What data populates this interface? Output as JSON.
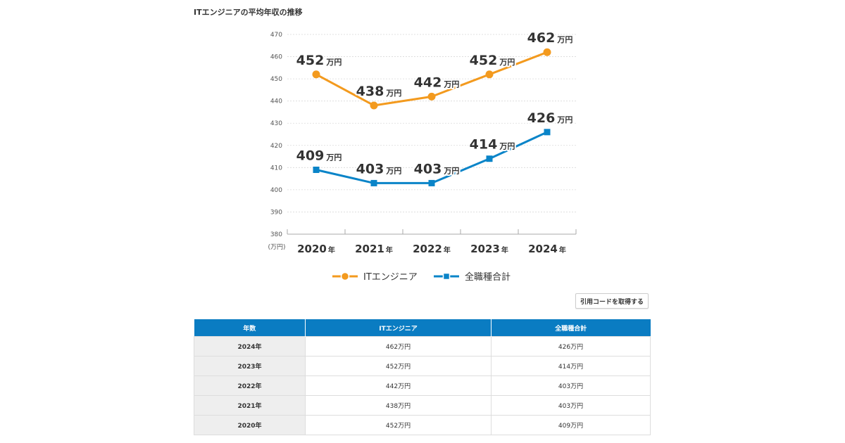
{
  "title": "ITエンジニアの平均年収の推移",
  "colors": {
    "it": "#f39a1e",
    "all": "#0a84c8",
    "header": "#0a7cc2"
  },
  "chart_data": {
    "type": "line",
    "x": [
      "2020年",
      "2021年",
      "2022年",
      "2023年",
      "2024年"
    ],
    "series": [
      {
        "name": "ITエンジニア",
        "marker": "circle",
        "values": [
          452,
          438,
          442,
          452,
          462
        ]
      },
      {
        "name": "全職種合計",
        "marker": "square",
        "values": [
          409,
          403,
          403,
          414,
          426
        ]
      }
    ],
    "unit": "万円",
    "ylabel": "(万円)",
    "ylim": [
      380,
      470
    ],
    "yticks": [
      380,
      390,
      400,
      410,
      420,
      430,
      440,
      450,
      460,
      470
    ],
    "grid": true,
    "legend": "bottom-center"
  },
  "cite_button": "引用コードを取得する",
  "table": {
    "headers": [
      "年数",
      "ITエンジニア",
      "全職種合計"
    ],
    "rows": [
      [
        "2024年",
        "462万円",
        "426万円"
      ],
      [
        "2023年",
        "452万円",
        "414万円"
      ],
      [
        "2022年",
        "442万円",
        "403万円"
      ],
      [
        "2021年",
        "438万円",
        "403万円"
      ],
      [
        "2020年",
        "452万円",
        "409万円"
      ]
    ]
  }
}
